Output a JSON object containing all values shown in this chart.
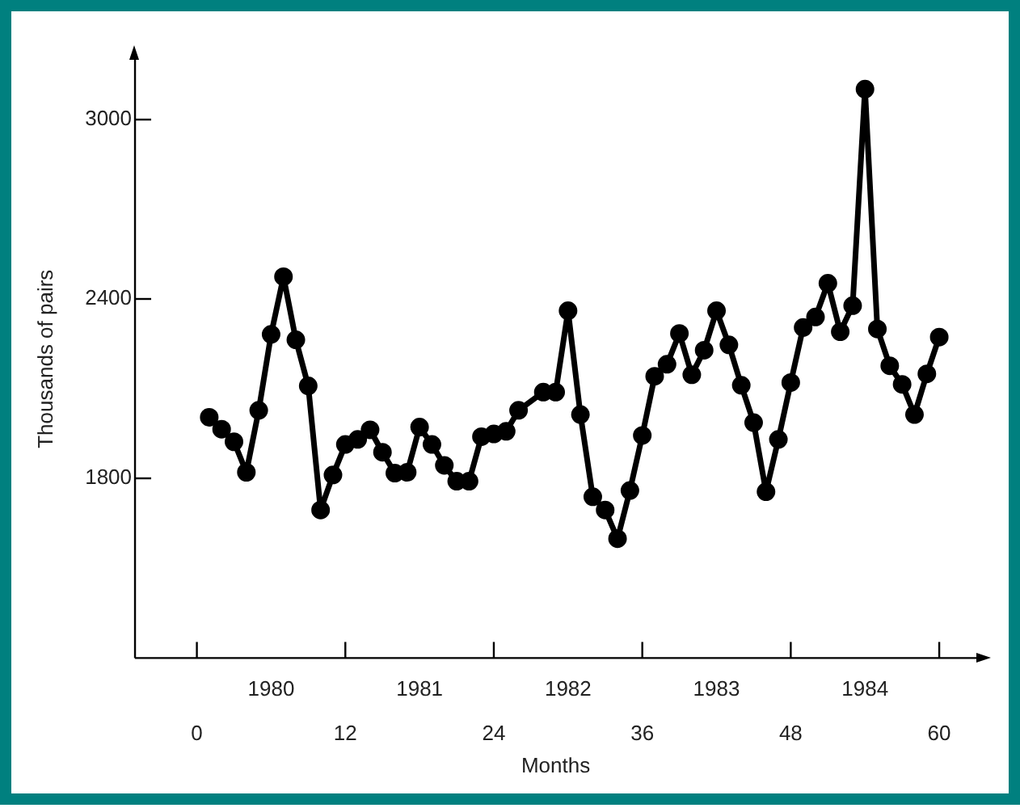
{
  "chart_data": {
    "type": "line",
    "xlabel": "Months",
    "ylabel": "Thousands of pairs",
    "x": [
      1,
      2,
      3,
      4,
      5,
      6,
      7,
      8,
      9,
      10,
      11,
      12,
      13,
      14,
      15,
      16,
      17,
      18,
      19,
      20,
      21,
      22,
      23,
      24,
      25,
      26,
      28,
      29,
      30,
      31,
      32,
      33,
      34,
      35,
      36,
      37,
      38,
      39,
      40,
      41,
      42,
      43,
      44,
      45,
      46,
      47,
      48,
      49,
      50,
      51,
      52,
      53,
      54,
      55,
      56,
      57,
      58,
      59,
      60
    ],
    "series": [
      {
        "color": "#000000",
        "values": [
          2005,
          1965,
          1923,
          1821,
          2028,
          2282,
          2475,
          2264,
          2110,
          1695,
          1812,
          1914,
          1931,
          1963,
          1888,
          1818,
          1821,
          1972,
          1914,
          1844,
          1791,
          1791,
          1940,
          1949,
          1958,
          2028,
          2089,
          2089,
          2361,
          2014,
          1739,
          1695,
          1599,
          1760,
          1944,
          2142,
          2182,
          2285,
          2147,
          2229,
          2361,
          2247,
          2112,
          1987,
          1756,
          1931,
          2121,
          2305,
          2340,
          2453,
          2291,
          2378,
          3102,
          2300,
          2177,
          2115,
          2014,
          2150,
          2273
        ]
      }
    ],
    "xlim": [
      -5,
      63
    ],
    "ylim": [
      1200,
      3200
    ],
    "xticks": [
      0,
      12,
      24,
      36,
      48,
      60
    ],
    "x2lim": [
      1979.5833,
      1985.25
    ],
    "x2ticks": [
      {
        "value": 1980.5,
        "label": "1980"
      },
      {
        "value": 1981.5,
        "label": "1981"
      },
      {
        "value": 1982.5,
        "label": "1982"
      },
      {
        "value": 1983.5,
        "label": "1983"
      },
      {
        "value": 1984.5,
        "label": "1984"
      }
    ],
    "yticks": [
      1800,
      2400,
      3000
    ],
    "grid": false,
    "legend": false,
    "marker": "circle",
    "line_style": "solid"
  }
}
